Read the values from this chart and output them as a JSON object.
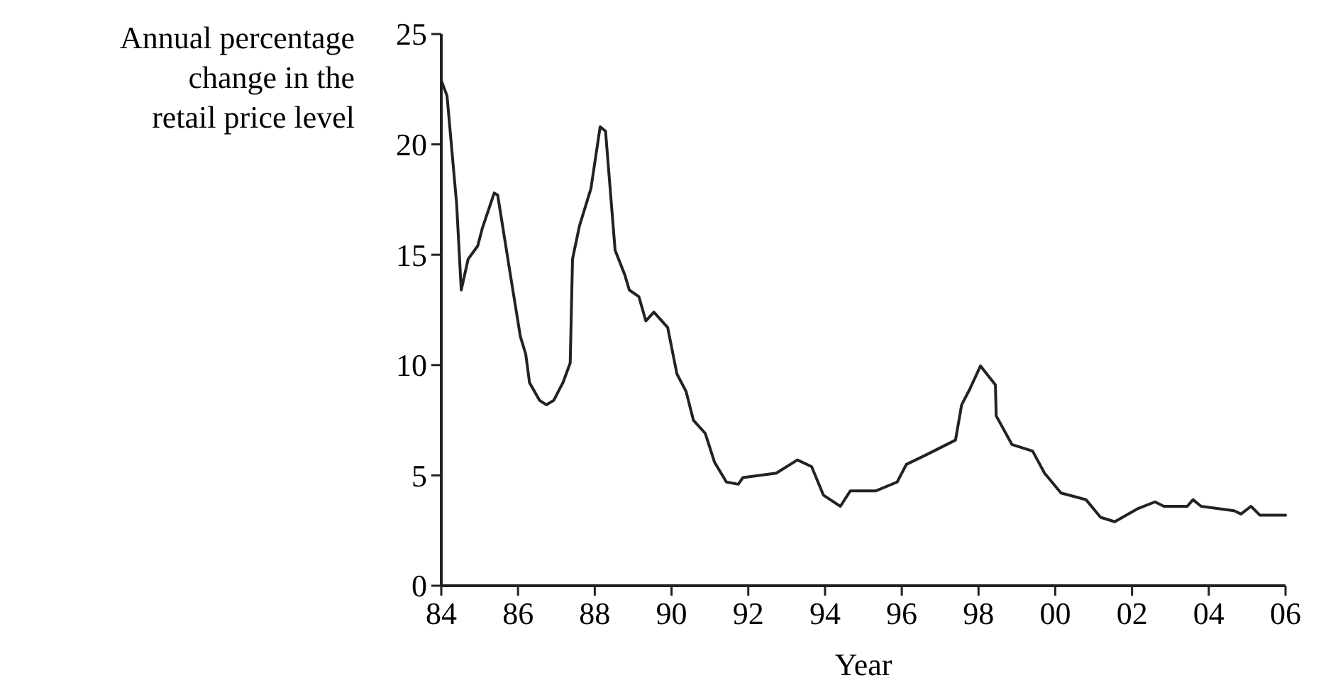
{
  "chart_data": {
    "type": "line",
    "xlabel": "Year",
    "ylabel": "Annual percentage\nchange in the\nretail price level",
    "xlim": [
      1984,
      2006
    ],
    "xticks": [
      {
        "value": 1984,
        "label": "84"
      },
      {
        "value": 1986,
        "label": "86"
      },
      {
        "value": 1988,
        "label": "88"
      },
      {
        "value": 1990,
        "label": "90"
      },
      {
        "value": 1992,
        "label": "92"
      },
      {
        "value": 1994,
        "label": "94"
      },
      {
        "value": 1996,
        "label": "96"
      },
      {
        "value": 1998,
        "label": "98"
      },
      {
        "value": 2000,
        "label": "00"
      },
      {
        "value": 2002,
        "label": "02"
      },
      {
        "value": 2004,
        "label": "04"
      },
      {
        "value": 2006,
        "label": "06"
      }
    ],
    "ylim": [
      0,
      25
    ],
    "yticks": [
      0,
      5,
      10,
      15,
      20,
      25
    ],
    "grid": false,
    "marker": "none",
    "line_style": "solid",
    "series": [
      {
        "color": "#222222",
        "x": [
          1984.0,
          1984.15,
          1984.4,
          1984.52,
          1984.7,
          1984.95,
          1985.07,
          1985.38,
          1985.47,
          1985.8,
          1986.06,
          1986.2,
          1986.3,
          1986.56,
          1986.74,
          1986.93,
          1987.17,
          1987.36,
          1987.42,
          1987.6,
          1987.9,
          1988.14,
          1988.28,
          1988.53,
          1988.78,
          1988.9,
          1989.15,
          1989.33,
          1989.54,
          1989.9,
          1990.14,
          1990.38,
          1990.57,
          1990.88,
          1991.12,
          1991.43,
          1991.74,
          1991.86,
          1992.73,
          1993.28,
          1993.65,
          1993.96,
          1994.4,
          1994.66,
          1995.33,
          1995.88,
          1996.12,
          1996.6,
          1997.4,
          1997.56,
          1997.77,
          1998.05,
          1998.44,
          1998.46,
          1998.87,
          1999.41,
          1999.72,
          2000.15,
          2000.8,
          2001.18,
          2001.55,
          2002.16,
          2002.6,
          2002.83,
          2003.44,
          2003.59,
          2003.8,
          2004.66,
          2004.84,
          2005.1,
          2005.33,
          2006.0
        ],
        "values": [
          22.9,
          22.2,
          17.3,
          13.4,
          14.8,
          15.4,
          16.2,
          17.8,
          17.7,
          14.1,
          11.3,
          10.5,
          9.2,
          8.4,
          8.2,
          8.4,
          9.2,
          10.1,
          14.8,
          16.3,
          18.0,
          20.8,
          20.6,
          15.2,
          14.1,
          13.4,
          13.1,
          12.0,
          12.4,
          11.7,
          9.6,
          8.8,
          7.5,
          6.9,
          5.6,
          4.7,
          4.6,
          4.9,
          5.1,
          5.7,
          5.4,
          4.1,
          3.6,
          4.3,
          4.3,
          4.7,
          5.5,
          5.9,
          6.6,
          8.2,
          8.9,
          9.96,
          9.1,
          7.7,
          6.4,
          6.1,
          5.1,
          4.2,
          3.9,
          3.1,
          2.9,
          3.5,
          3.8,
          3.6,
          3.6,
          3.9,
          3.6,
          3.4,
          3.25,
          3.6,
          3.2,
          3.2
        ]
      }
    ]
  }
}
